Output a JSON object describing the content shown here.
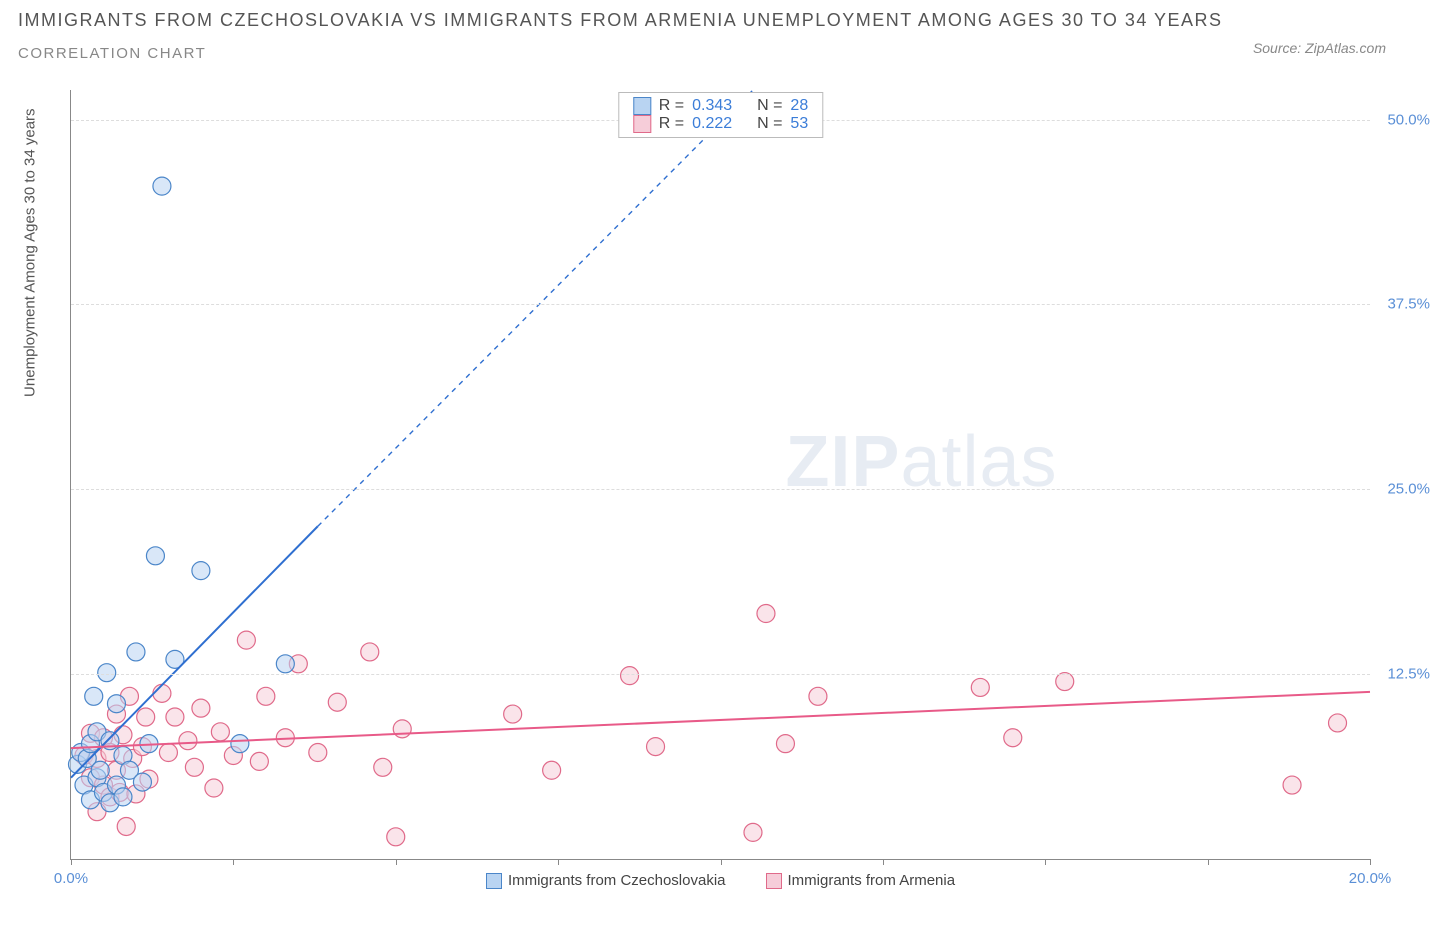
{
  "title_line1": "IMMIGRANTS FROM CZECHOSLOVAKIA VS IMMIGRANTS FROM ARMENIA UNEMPLOYMENT AMONG AGES 30 TO 34 YEARS",
  "title_line2": "CORRELATION CHART",
  "source_prefix": "Source: ",
  "source_name": "ZipAtlas.com",
  "y_axis_label": "Unemployment Among Ages 30 to 34 years",
  "watermark_zip": "ZIP",
  "watermark_atlas": "atlas",
  "chart": {
    "type": "scatter",
    "xlim": [
      0,
      20
    ],
    "ylim": [
      0,
      52
    ],
    "x_ticks": [
      0,
      2.5,
      5,
      7.5,
      10,
      12.5,
      15,
      17.5,
      20
    ],
    "x_tick_labels": {
      "0": "0.0%",
      "20": "20.0%"
    },
    "y_ticks": [
      12.5,
      25,
      37.5,
      50
    ],
    "y_tick_labels": {
      "12.5": "12.5%",
      "25": "25.0%",
      "37.5": "37.5%",
      "50": "50.0%"
    },
    "background_color": "#ffffff",
    "grid_color": "#dddddd",
    "axis_color": "#888888",
    "marker_radius": 9,
    "marker_stroke_width": 1.2,
    "line_width": 2,
    "dash_pattern": "5,5"
  },
  "series": [
    {
      "name": "Immigrants from Czechoslovakia",
      "key": "cz",
      "fill": "#b9d4f2",
      "stroke": "#4b86c9",
      "line_color": "#2f6fd0",
      "R": "0.343",
      "N": "28",
      "trend_solid": {
        "x1": 0,
        "y1": 5.5,
        "x2": 3.8,
        "y2": 22.5
      },
      "trend_dash": {
        "x1": 3.8,
        "y1": 22.5,
        "x2": 10.5,
        "y2": 52
      },
      "points": [
        [
          0.1,
          6.4
        ],
        [
          0.15,
          7.2
        ],
        [
          0.2,
          5.0
        ],
        [
          0.25,
          6.8
        ],
        [
          0.3,
          7.8
        ],
        [
          0.3,
          4.0
        ],
        [
          0.35,
          11.0
        ],
        [
          0.4,
          5.5
        ],
        [
          0.4,
          8.6
        ],
        [
          0.45,
          6.0
        ],
        [
          0.5,
          4.5
        ],
        [
          0.55,
          12.6
        ],
        [
          0.6,
          3.8
        ],
        [
          0.6,
          8.0
        ],
        [
          0.7,
          5.0
        ],
        [
          0.7,
          10.5
        ],
        [
          0.8,
          7.0
        ],
        [
          0.8,
          4.2
        ],
        [
          0.9,
          6.0
        ],
        [
          1.0,
          14.0
        ],
        [
          1.1,
          5.2
        ],
        [
          1.2,
          7.8
        ],
        [
          1.3,
          20.5
        ],
        [
          1.4,
          45.5
        ],
        [
          1.6,
          13.5
        ],
        [
          2.0,
          19.5
        ],
        [
          2.6,
          7.8
        ],
        [
          3.3,
          13.2
        ]
      ]
    },
    {
      "name": "Immigrants from Armenia",
      "key": "am",
      "fill": "#f6cdd9",
      "stroke": "#e06a8a",
      "line_color": "#e85a88",
      "R": "0.222",
      "N": "53",
      "trend_solid": {
        "x1": 0,
        "y1": 7.5,
        "x2": 20,
        "y2": 11.3
      },
      "points": [
        [
          0.2,
          7.0
        ],
        [
          0.3,
          5.5
        ],
        [
          0.3,
          8.5
        ],
        [
          0.4,
          3.2
        ],
        [
          0.4,
          6.8
        ],
        [
          0.5,
          5.0
        ],
        [
          0.5,
          8.2
        ],
        [
          0.6,
          4.2
        ],
        [
          0.6,
          7.2
        ],
        [
          0.7,
          9.8
        ],
        [
          0.7,
          6.0
        ],
        [
          0.75,
          4.5
        ],
        [
          0.8,
          8.4
        ],
        [
          0.85,
          2.2
        ],
        [
          0.9,
          11.0
        ],
        [
          0.95,
          6.8
        ],
        [
          1.0,
          4.4
        ],
        [
          1.1,
          7.6
        ],
        [
          1.15,
          9.6
        ],
        [
          1.2,
          5.4
        ],
        [
          1.4,
          11.2
        ],
        [
          1.5,
          7.2
        ],
        [
          1.6,
          9.6
        ],
        [
          1.8,
          8.0
        ],
        [
          1.9,
          6.2
        ],
        [
          2.0,
          10.2
        ],
        [
          2.2,
          4.8
        ],
        [
          2.3,
          8.6
        ],
        [
          2.5,
          7.0
        ],
        [
          2.7,
          14.8
        ],
        [
          2.9,
          6.6
        ],
        [
          3.0,
          11.0
        ],
        [
          3.3,
          8.2
        ],
        [
          3.5,
          13.2
        ],
        [
          3.8,
          7.2
        ],
        [
          4.1,
          10.6
        ],
        [
          4.6,
          14.0
        ],
        [
          4.8,
          6.2
        ],
        [
          5.0,
          1.5
        ],
        [
          5.1,
          8.8
        ],
        [
          6.8,
          9.8
        ],
        [
          7.4,
          6.0
        ],
        [
          8.6,
          12.4
        ],
        [
          9.0,
          7.6
        ],
        [
          10.5,
          1.8
        ],
        [
          10.7,
          16.6
        ],
        [
          11.0,
          7.8
        ],
        [
          11.5,
          11.0
        ],
        [
          14.0,
          11.6
        ],
        [
          14.5,
          8.2
        ],
        [
          15.3,
          12.0
        ],
        [
          18.8,
          5.0
        ],
        [
          19.5,
          9.2
        ]
      ]
    }
  ],
  "legend": {
    "cz_label": "Immigrants from Czechoslovakia",
    "am_label": "Immigrants from Armenia"
  },
  "stats_labels": {
    "R": "R =",
    "N": "N ="
  }
}
